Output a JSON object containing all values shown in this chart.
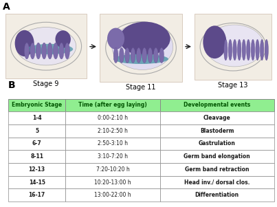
{
  "panel_a_label": "A",
  "panel_b_label": "B",
  "stage_labels": [
    "Stage 9",
    "Stage 11",
    "Stage 13"
  ],
  "table_headers": [
    "Embryonic Stage",
    "Time (after egg laying)",
    "Developmental events"
  ],
  "table_rows": [
    [
      "1-4",
      "0:00-2:10 h",
      "Cleavage"
    ],
    [
      "5",
      "2:10-2:50 h",
      "Blastoderm"
    ],
    [
      "6-7",
      "2:50-3:10 h",
      "Gastrulation"
    ],
    [
      "8-11",
      "3:10-7:20 h",
      "Germ band elongation"
    ],
    [
      "12-13",
      "7:20-10:20 h",
      "Germ band retraction"
    ],
    [
      "14-15",
      "10:20-13:00 h",
      "Head inv./ dorsal clos."
    ],
    [
      "16-17",
      "13:00-22:00 h",
      "Differentiation"
    ]
  ],
  "header_bg_color": "#90EE90",
  "row_bg_color": "#FFFFFF",
  "table_border_color": "#888888",
  "header_text_color": "#005500",
  "row_text_color": "#1a1a1a",
  "background_color": "#FFFFFF",
  "arrow_color": "#222222",
  "embryo_bg": "#F2EDE4",
  "embryo_outline": "#C0B8A8",
  "purple_dark": "#5C4A8A",
  "purple_mid": "#7B6BAA",
  "purple_light": "#9988BB",
  "teal": "#5599AA",
  "gray_outline": "#AAAAAA"
}
